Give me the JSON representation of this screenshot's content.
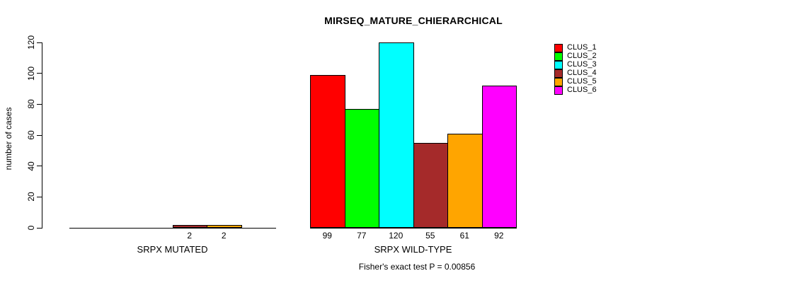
{
  "chart_data": {
    "type": "bar",
    "title": "MIRSEQ_MATURE_CHIERARCHICAL",
    "ylabel": "number of cases",
    "annotation": "Fisher's exact test P = 0.00856",
    "ylim": [
      0,
      120
    ],
    "yticks": [
      0,
      20,
      40,
      60,
      80,
      100,
      120
    ],
    "grid": false,
    "legend_position": "top-right",
    "categories": [
      "SRPX MUTATED",
      "SRPX WILD-TYPE"
    ],
    "series": [
      {
        "name": "CLUS_1",
        "color": "#ff0000",
        "values": [
          0,
          99
        ]
      },
      {
        "name": "CLUS_2",
        "color": "#00ff00",
        "values": [
          0,
          77
        ]
      },
      {
        "name": "CLUS_3",
        "color": "#00ffff",
        "values": [
          0,
          120
        ]
      },
      {
        "name": "CLUS_4",
        "color": "#a52a2a",
        "values": [
          2,
          55
        ]
      },
      {
        "name": "CLUS_5",
        "color": "#ffa500",
        "values": [
          2,
          61
        ]
      },
      {
        "name": "CLUS_6",
        "color": "#ff00ff",
        "values": [
          0,
          92
        ]
      }
    ],
    "bar_labels": [
      [
        null,
        null,
        null,
        "2",
        "2",
        null
      ],
      [
        "99",
        "77",
        "120",
        "55",
        "61",
        "92"
      ]
    ],
    "legend_entries": [
      "CLUS_1",
      "CLUS_2",
      "CLUS_3",
      "CLUS_4",
      "CLUS_5",
      "CLUS_6"
    ]
  }
}
